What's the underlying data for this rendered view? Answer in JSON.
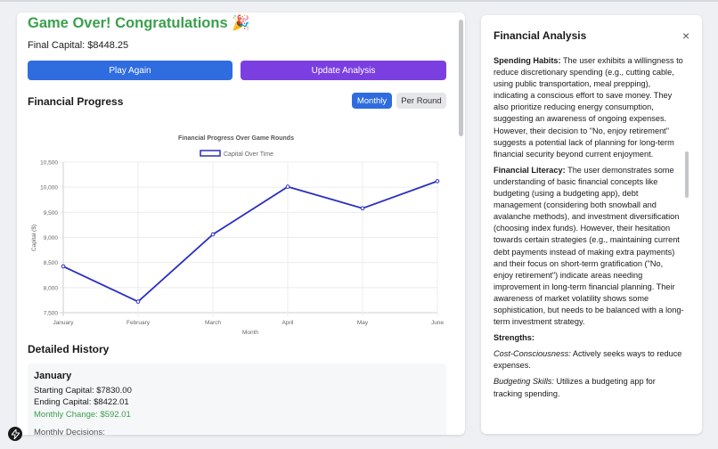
{
  "game": {
    "title": "Game Over! Congratulations",
    "title_emoji": "🎉",
    "final_capital_label": "Final Capital: $8448.25",
    "play_again": "Play Again",
    "update_analysis": "Update Analysis"
  },
  "progress": {
    "title": "Financial Progress",
    "toggle_monthly": "Monthly",
    "toggle_round": "Per Round"
  },
  "chart_data": {
    "type": "line",
    "title": "Financial Progress Over Game Rounds",
    "xlabel": "Month",
    "ylabel": "Capital ($)",
    "categories": [
      "January",
      "February",
      "March",
      "April",
      "May",
      "June"
    ],
    "series": [
      {
        "name": "Capital Over Time",
        "values": [
          8422,
          7720,
          9060,
          10010,
          9580,
          10120
        ]
      }
    ],
    "ylim": [
      7500,
      10500
    ],
    "yticks": [
      "10,500",
      "10,000",
      "9,500",
      "9,000",
      "8,500",
      "8,000",
      "7,500"
    ],
    "legend": "top",
    "grid": true,
    "color": "#2a2fbf"
  },
  "history": {
    "title": "Detailed History",
    "month": "January",
    "starting": "Starting Capital: $7830.00",
    "ending": "Ending Capital: $8422.01",
    "change": "Monthly Change: $592.01",
    "decisions": "Monthly Decisions:"
  },
  "analysis": {
    "title": "Financial Analysis",
    "close": "×",
    "spending_label": "Spending Habits:",
    "spending_text": "The user exhibits a willingness to reduce discretionary spending (e.g., cutting cable, using public transportation, meal prepping), indicating a conscious effort to save money. They also prioritize reducing energy consumption, suggesting an awareness of ongoing expenses. However, their decision to \"No, enjoy retirement\" suggests a potential lack of planning for long-term financial security beyond current enjoyment.",
    "literacy_label": "Financial Literacy:",
    "literacy_text": "The user demonstrates some understanding of basic financial concepts like budgeting (using a budgeting app), debt management (considering both snowball and avalanche methods), and investment diversification (choosing index funds). However, their hesitation towards certain strategies (e.g., maintaining current debt payments instead of making extra payments) and their focus on short-term gratification (\"No, enjoy retirement\") indicate areas needing improvement in long-term financial planning. Their awareness of market volatility shows some sophistication, but needs to be balanced with a long-term investment strategy.",
    "strengths_label": "Strengths:",
    "cost_label": "Cost-Consciousness:",
    "cost_text": "Actively seeks ways to reduce expenses.",
    "budget_label": "Budgeting Skills:",
    "budget_text": "Utilizes a budgeting app for tracking spending."
  }
}
